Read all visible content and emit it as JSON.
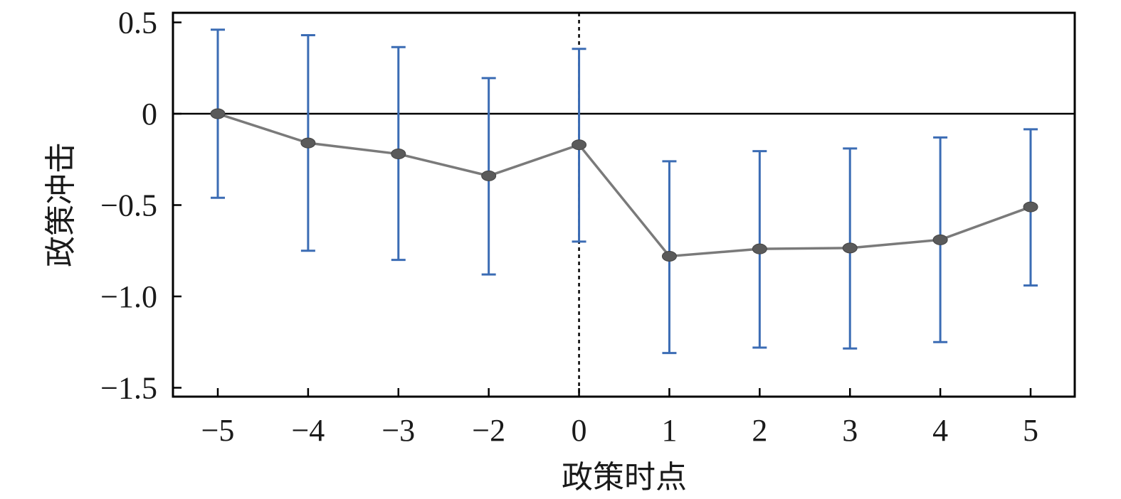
{
  "chart_data": {
    "type": "line",
    "title": "",
    "xlabel": "政策时点",
    "ylabel": "政策冲击",
    "categories": [
      "−5",
      "−4",
      "−3",
      "−2",
      "0",
      "1",
      "2",
      "3",
      "4",
      "5"
    ],
    "x": [
      -5,
      -4,
      -3,
      -2,
      0,
      1,
      2,
      3,
      4,
      5
    ],
    "series": [
      {
        "values": [
          0.0,
          -0.16,
          -0.22,
          -0.34,
          -0.17,
          -0.78,
          -0.74,
          -0.735,
          -0.69,
          -0.51
        ],
        "ci_upper": [
          0.46,
          0.43,
          0.365,
          0.195,
          0.355,
          -0.26,
          -0.205,
          -0.19,
          -0.13,
          -0.085
        ],
        "ci_lower": [
          -0.46,
          -0.75,
          -0.8,
          -0.88,
          -0.7,
          -1.31,
          -1.28,
          -1.285,
          -1.25,
          -0.94
        ]
      }
    ],
    "ylim": [
      -1.55,
      0.55
    ],
    "yticks": [
      0.5,
      0,
      -0.5,
      -1.0,
      -1.5
    ],
    "ytick_labels": [
      "0.5",
      "0",
      "−0.5",
      "−1.0",
      "−1.5"
    ],
    "reference_hline": 0,
    "reference_vline_category": "0",
    "grid": false,
    "legend": "none",
    "colors": {
      "line": "#7a7a7a",
      "marker": "#5a5a5a",
      "error_bar": "#3b6cb4",
      "axis": "#000000"
    }
  }
}
